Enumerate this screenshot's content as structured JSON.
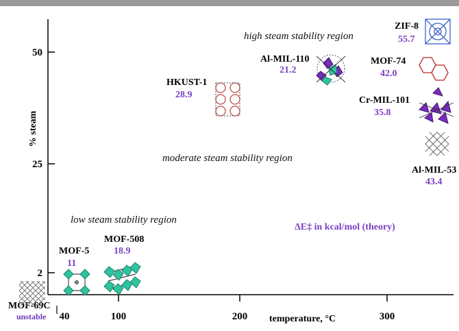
{
  "colors": {
    "top_rule": "#999999",
    "axis": "#000000",
    "value_purple": "#7b3fc4",
    "note_purple": "#6a35b8",
    "crystal_teal": "#2ec4a0",
    "crystal_purple": "#7a2ac0",
    "crystal_blue": "#3b62c8",
    "crystal_red": "#c24a4a",
    "crystal_gray": "#6e6e6e"
  },
  "chart_data": {
    "type": "scatter",
    "xlabel": "temperature, °C",
    "ylabel": "% steam",
    "x_ticks": [
      "40",
      "100",
      "200",
      "300"
    ],
    "y_ticks": [
      "2",
      "25",
      "50"
    ],
    "regions": [
      "high steam stability region",
      "moderate steam stability region",
      "low steam stability region"
    ],
    "legend_note": "ΔE‡ in kcal/mol (theory)",
    "points": [
      {
        "name": "MOF-69C",
        "value": null,
        "note": "unstable",
        "x": 20,
        "y": 0,
        "icon": "mesh-gray-icon"
      },
      {
        "name": "MOF-5",
        "value": "11",
        "note": "",
        "x": 40,
        "y": 2,
        "icon": "cubic-teal-icon"
      },
      {
        "name": "MOF-508",
        "value": "18.9",
        "note": "",
        "x": 100,
        "y": 2,
        "icon": "pillared-teal-icon"
      },
      {
        "name": "HKUST-1",
        "value": "28.9",
        "note": "",
        "x": 180,
        "y": 40,
        "icon": "cage-red-icon"
      },
      {
        "name": "Al-MIL-110",
        "value": "21.2",
        "note": "",
        "x": 265,
        "y": 45,
        "icon": "cluster-purple-teal-icon"
      },
      {
        "name": "ZIF-8",
        "value": "55.7",
        "note": "",
        "x": 335,
        "y": 55,
        "icon": "sodalite-blue-icon"
      },
      {
        "name": "MOF-74",
        "value": "42.0",
        "note": "",
        "x": 335,
        "y": 47,
        "icon": "hexagon-channel-icon"
      },
      {
        "name": "Cr-MIL-101",
        "value": "35.8",
        "note": "",
        "x": 335,
        "y": 38,
        "icon": "tetrahedra-purple-icon"
      },
      {
        "name": "Al-MIL-53",
        "value": "43.4",
        "note": "",
        "x": 335,
        "y": 28,
        "icon": "lozenge-gray-icon"
      }
    ]
  }
}
